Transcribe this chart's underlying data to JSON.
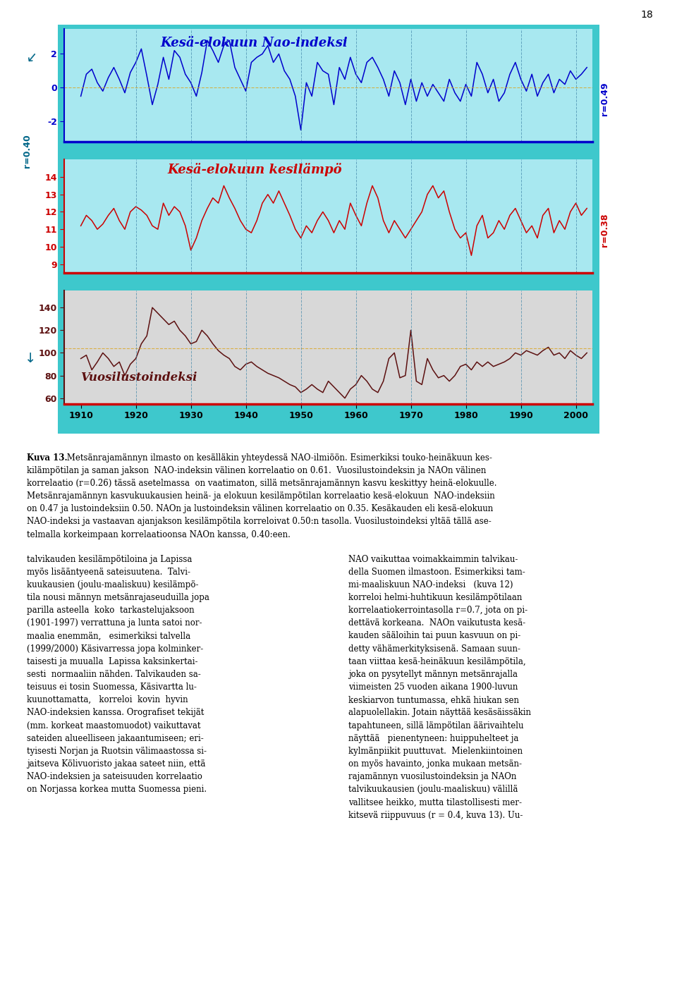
{
  "years": [
    1910,
    1911,
    1912,
    1913,
    1914,
    1915,
    1916,
    1917,
    1918,
    1919,
    1920,
    1921,
    1922,
    1923,
    1924,
    1925,
    1926,
    1927,
    1928,
    1929,
    1930,
    1931,
    1932,
    1933,
    1934,
    1935,
    1936,
    1937,
    1938,
    1939,
    1940,
    1941,
    1942,
    1943,
    1944,
    1945,
    1946,
    1947,
    1948,
    1949,
    1950,
    1951,
    1952,
    1953,
    1954,
    1955,
    1956,
    1957,
    1958,
    1959,
    1960,
    1961,
    1962,
    1963,
    1964,
    1965,
    1966,
    1967,
    1968,
    1969,
    1970,
    1971,
    1972,
    1973,
    1974,
    1975,
    1976,
    1977,
    1978,
    1979,
    1980,
    1981,
    1982,
    1983,
    1984,
    1985,
    1986,
    1987,
    1988,
    1989,
    1990,
    1991,
    1992,
    1993,
    1994,
    1995,
    1996,
    1997,
    1998,
    1999,
    2000,
    2001,
    2002
  ],
  "nao": [
    -0.5,
    0.8,
    1.1,
    0.3,
    -0.2,
    0.6,
    1.2,
    0.5,
    -0.3,
    0.9,
    1.5,
    2.3,
    0.7,
    -1.0,
    0.2,
    1.8,
    0.5,
    2.2,
    1.8,
    0.8,
    0.3,
    -0.5,
    0.9,
    2.8,
    2.2,
    1.5,
    2.5,
    2.8,
    1.2,
    0.5,
    -0.2,
    1.5,
    1.8,
    2.0,
    2.5,
    1.5,
    2.0,
    1.0,
    0.5,
    -0.5,
    -2.5,
    0.3,
    -0.5,
    1.5,
    1.0,
    0.8,
    -1.0,
    1.2,
    0.5,
    1.8,
    0.8,
    0.3,
    1.5,
    1.8,
    1.2,
    0.5,
    -0.5,
    1.0,
    0.3,
    -1.0,
    0.5,
    -0.8,
    0.3,
    -0.5,
    0.2,
    -0.3,
    -0.8,
    0.5,
    -0.3,
    -0.8,
    0.2,
    -0.5,
    1.5,
    0.8,
    -0.3,
    0.5,
    -0.8,
    -0.3,
    0.8,
    1.5,
    0.5,
    -0.2,
    0.8,
    -0.5,
    0.3,
    0.8,
    -0.3,
    0.5,
    0.2,
    1.0,
    0.5,
    0.8,
    1.2
  ],
  "temp": [
    11.2,
    11.8,
    11.5,
    11.0,
    11.3,
    11.8,
    12.2,
    11.5,
    11.0,
    12.0,
    12.3,
    12.1,
    11.8,
    11.2,
    11.0,
    12.5,
    11.8,
    12.3,
    12.0,
    11.2,
    9.8,
    10.5,
    11.5,
    12.2,
    12.8,
    12.5,
    13.5,
    12.8,
    12.2,
    11.5,
    11.0,
    10.8,
    11.5,
    12.5,
    13.0,
    12.5,
    13.2,
    12.5,
    11.8,
    11.0,
    10.5,
    11.2,
    10.8,
    11.5,
    12.0,
    11.5,
    10.8,
    11.5,
    11.0,
    12.5,
    11.8,
    11.2,
    12.5,
    13.5,
    12.8,
    11.5,
    10.8,
    11.5,
    11.0,
    10.5,
    11.0,
    11.5,
    12.0,
    13.0,
    13.5,
    12.8,
    13.2,
    12.0,
    11.0,
    10.5,
    10.8,
    9.5,
    11.2,
    11.8,
    10.5,
    10.8,
    11.5,
    11.0,
    11.8,
    12.2,
    11.5,
    10.8,
    11.2,
    10.5,
    11.8,
    12.2,
    10.8,
    11.5,
    11.0,
    12.0,
    12.5,
    11.8,
    12.2
  ],
  "lust": [
    95,
    98,
    85,
    92,
    100,
    95,
    88,
    92,
    80,
    90,
    95,
    108,
    115,
    140,
    135,
    130,
    125,
    128,
    120,
    115,
    108,
    110,
    120,
    115,
    108,
    102,
    98,
    95,
    88,
    85,
    90,
    92,
    88,
    85,
    82,
    80,
    78,
    75,
    72,
    70,
    65,
    68,
    72,
    68,
    65,
    75,
    70,
    65,
    60,
    68,
    72,
    80,
    75,
    68,
    65,
    75,
    95,
    100,
    78,
    80,
    120,
    75,
    72,
    95,
    85,
    78,
    80,
    75,
    80,
    88,
    90,
    85,
    92,
    88,
    92,
    88,
    90,
    92,
    95,
    100,
    98,
    102,
    100,
    98,
    102,
    105,
    98,
    100,
    95,
    102,
    98,
    95,
    100
  ],
  "nao_title": "Kesä-elokuun Nao-indeksi",
  "temp_title": "Kesä-elokuun kesilämpö",
  "lust_title": "Vuosilustoindeksi",
  "r_nao_left": "r=0.40",
  "r_nao_right": "r=0.49",
  "r_temp_right": "r=0.38",
  "bg_color": "#3EC8CC",
  "nao_color": "#0000CC",
  "temp_color": "#CC0000",
  "lust_color": "#5C1010",
  "axis_bg_nao": "#A8E8F0",
  "axis_bg_temp": "#A8E8F0",
  "lust_bg_color": "#D8D8D8",
  "nao_ylim": [
    -3.2,
    3.5
  ],
  "temp_ylim": [
    8.5,
    15.0
  ],
  "lust_ylim": [
    55,
    155
  ],
  "nao_yticks": [
    -2,
    0,
    2
  ],
  "temp_yticks": [
    9,
    10,
    11,
    12,
    13,
    14
  ],
  "lust_yticks": [
    60,
    80,
    100,
    120,
    140
  ],
  "xticks": [
    1910,
    1920,
    1930,
    1940,
    1950,
    1960,
    1970,
    1980,
    1990,
    2000
  ],
  "vlines": [
    1920,
    1930,
    1940,
    1950,
    1960,
    1970,
    1980,
    1990,
    2000
  ],
  "nao_hline": 0.0,
  "lust_hline": 104.0,
  "page_number": "18",
  "caption_bold": "Kuva 13.",
  "caption_rest": " Metsänrajamännyn ilmasto on kesälläkin yhteydessä NAO-ilmiöön. Esimerkiksi touko-heinäkuun kes-kilämpötilan ja saman jakson  NAO-indeksin välinen korrelaatio on 0.61.  Vuosilustoindeksin ja NAOn välinen korrelaatio (r=0.26) tässä asetelmassa  on vaatimaton, sillä metsänrajamännyn kasvu keskittyy heinä-elokuulle. Metsänrajamännyn kasvukuukausien heinä- ja elokuun kesilämpötilan korrelaatio kesä-elokuun  NAO-indeksiin on 0.47 ja lustoindeksiin 0.50. NAOn ja lustoindeksin välinen korrelaatio on 0.35. Kesäkauden eli kesä-elokuun NAO-indeksi ja vastaavan ajanjakson kesilämpötila korreloivat 0.50:n tasolla. Vuosilustoindeksi yltää tällä asetelmalla korkeimpaan korrelaatioonsa NAOn kanssa, 0.40:een.",
  "col1": "talvikauden kesilämpötiloina ja Lapissa myös lisääntyeenä sateisuutena. Talvi-kuukausien (joulu-maaliskuu) kesilämpö-tila nousi männyn metsänrajaseuduilla jopa parilla asteella  koko  tarkastelujaksoon (1901-1997) verrattuna ja lunta satoi nor-maalia enemmän,   esimerkiksi talvella (1999/2000) Käsivarressa jopa kolminker-taisesti ja muualla  Lapissa kaksinkertai-sesti  normaaliin nähden. Talvikauden sa-teisuus ei tosin Suomessa, Käsivartta lu-kuunottamatta,   korreloi  kovin  hyvin NAO-indeksien kanssa. Orografiset tekijät (mm. korkeat maastomuodot) vaikuttavat sateiden alueelliseen jakaantumiseen; eri-tyisesti Norjan ja Ruotsin välimaastossa si-jaitseva Kölivuoristo jakaa sateet niin, että NAO-indeksien ja sateisuuden korrelaatio on Norjassa korkea mutta Suomessa pieni.",
  "col2": "NAO vaikuttaa voimakkaimmin talvikau-della Suomen ilmastoon. Esimerkiksi tam-mi-maaliskuun NAO-indeksi   (kuva 12) korreloi helmi-huhtikuun kesilämpötilaan korrelaatiokerrointasolla r=0.7, jota on pi-dettävä korkeana.  NAOn vaikutusta kesä-kauden sääloihin tai puun kasvuun on pi-detty vähämerkityksisenä. Samaan suun-taan viittaa kesä-heinäkuun kesilämpötila, joka on pysytellyt männyn metsänrajalla viimeisten 25 vuoden aikana 1900-luvun keskiarvon tuntumassa, ehkä hiukan sen alapuolellakin. Jotain näyttää kesäsäissäkin tapahtuneen, sillä lämpötilan äärivaihtelu näyttää   pienentyneen: huippuhelteet ja kylmänpiikit puuttuvat.  Mielenkiintoinen on myös havainto, jonka mukaan metsän-rajamännyn vuosilustoindeksin ja NAOn talvikuukausien (joulu-maaliskuu) välillä vallitsee heikko, mutta tilastollisesti mer-kitsevä riippuvuus (r = 0.4, kuva 13). Uu-"
}
